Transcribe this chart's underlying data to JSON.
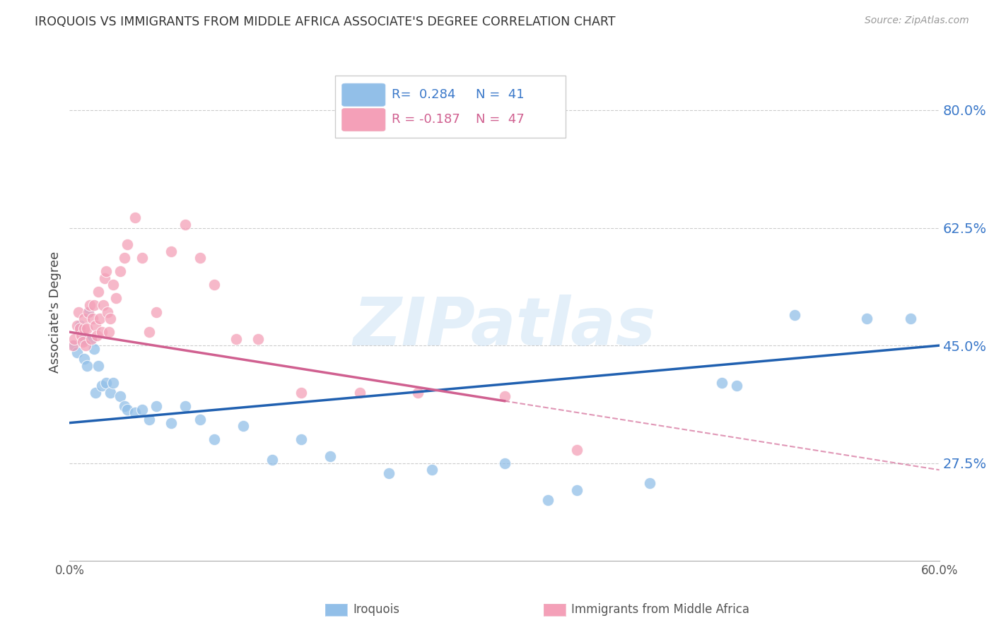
{
  "title": "IROQUOIS VS IMMIGRANTS FROM MIDDLE AFRICA ASSOCIATE'S DEGREE CORRELATION CHART",
  "source": "Source: ZipAtlas.com",
  "ylabel": "Associate's Degree",
  "xlim": [
    0.0,
    0.6
  ],
  "ylim": [
    0.13,
    0.87
  ],
  "yticks": [
    0.275,
    0.45,
    0.625,
    0.8
  ],
  "ytick_labels": [
    "27.5%",
    "45.0%",
    "62.5%",
    "80.0%"
  ],
  "xtick_positions": [
    0.0,
    0.1,
    0.2,
    0.3,
    0.4,
    0.5,
    0.6
  ],
  "xtick_labels": [
    "0.0%",
    "",
    "",
    "",
    "",
    "",
    "60.0%"
  ],
  "blue_R": 0.284,
  "blue_N": 41,
  "pink_R": -0.187,
  "pink_N": 47,
  "blue_color": "#92bfe8",
  "pink_color": "#f4a0b8",
  "blue_line_color": "#2060b0",
  "pink_line_color": "#d06090",
  "watermark": "ZIPatlas",
  "blue_scatter_x": [
    0.003,
    0.005,
    0.007,
    0.01,
    0.01,
    0.012,
    0.013,
    0.015,
    0.017,
    0.018,
    0.02,
    0.022,
    0.025,
    0.028,
    0.03,
    0.035,
    0.038,
    0.04,
    0.045,
    0.05,
    0.055,
    0.06,
    0.07,
    0.08,
    0.09,
    0.1,
    0.12,
    0.14,
    0.16,
    0.18,
    0.22,
    0.25,
    0.3,
    0.33,
    0.35,
    0.4,
    0.45,
    0.46,
    0.5,
    0.55,
    0.58
  ],
  "blue_scatter_y": [
    0.45,
    0.44,
    0.48,
    0.46,
    0.43,
    0.42,
    0.5,
    0.46,
    0.445,
    0.38,
    0.42,
    0.39,
    0.395,
    0.38,
    0.395,
    0.375,
    0.36,
    0.355,
    0.35,
    0.355,
    0.34,
    0.36,
    0.335,
    0.36,
    0.34,
    0.31,
    0.33,
    0.28,
    0.31,
    0.285,
    0.26,
    0.265,
    0.275,
    0.22,
    0.235,
    0.245,
    0.395,
    0.39,
    0.495,
    0.49,
    0.49
  ],
  "pink_scatter_x": [
    0.002,
    0.003,
    0.005,
    0.006,
    0.007,
    0.008,
    0.009,
    0.01,
    0.01,
    0.011,
    0.012,
    0.013,
    0.014,
    0.015,
    0.016,
    0.017,
    0.018,
    0.019,
    0.02,
    0.021,
    0.022,
    0.023,
    0.024,
    0.025,
    0.026,
    0.027,
    0.028,
    0.03,
    0.032,
    0.035,
    0.038,
    0.04,
    0.045,
    0.05,
    0.055,
    0.06,
    0.07,
    0.08,
    0.09,
    0.1,
    0.115,
    0.13,
    0.16,
    0.2,
    0.24,
    0.3,
    0.35
  ],
  "pink_scatter_y": [
    0.45,
    0.46,
    0.48,
    0.5,
    0.475,
    0.465,
    0.455,
    0.475,
    0.49,
    0.45,
    0.475,
    0.5,
    0.51,
    0.46,
    0.49,
    0.51,
    0.48,
    0.465,
    0.53,
    0.49,
    0.47,
    0.51,
    0.55,
    0.56,
    0.5,
    0.47,
    0.49,
    0.54,
    0.52,
    0.56,
    0.58,
    0.6,
    0.64,
    0.58,
    0.47,
    0.5,
    0.59,
    0.63,
    0.58,
    0.54,
    0.46,
    0.46,
    0.38,
    0.38,
    0.38,
    0.375,
    0.295
  ],
  "blue_line_start_x": 0.0,
  "blue_line_end_x": 0.6,
  "blue_line_start_y": 0.335,
  "blue_line_end_y": 0.45,
  "pink_line_start_x": 0.0,
  "pink_line_solid_end_x": 0.3,
  "pink_line_end_x": 0.6,
  "pink_line_start_y": 0.47,
  "pink_line_end_y": 0.265
}
